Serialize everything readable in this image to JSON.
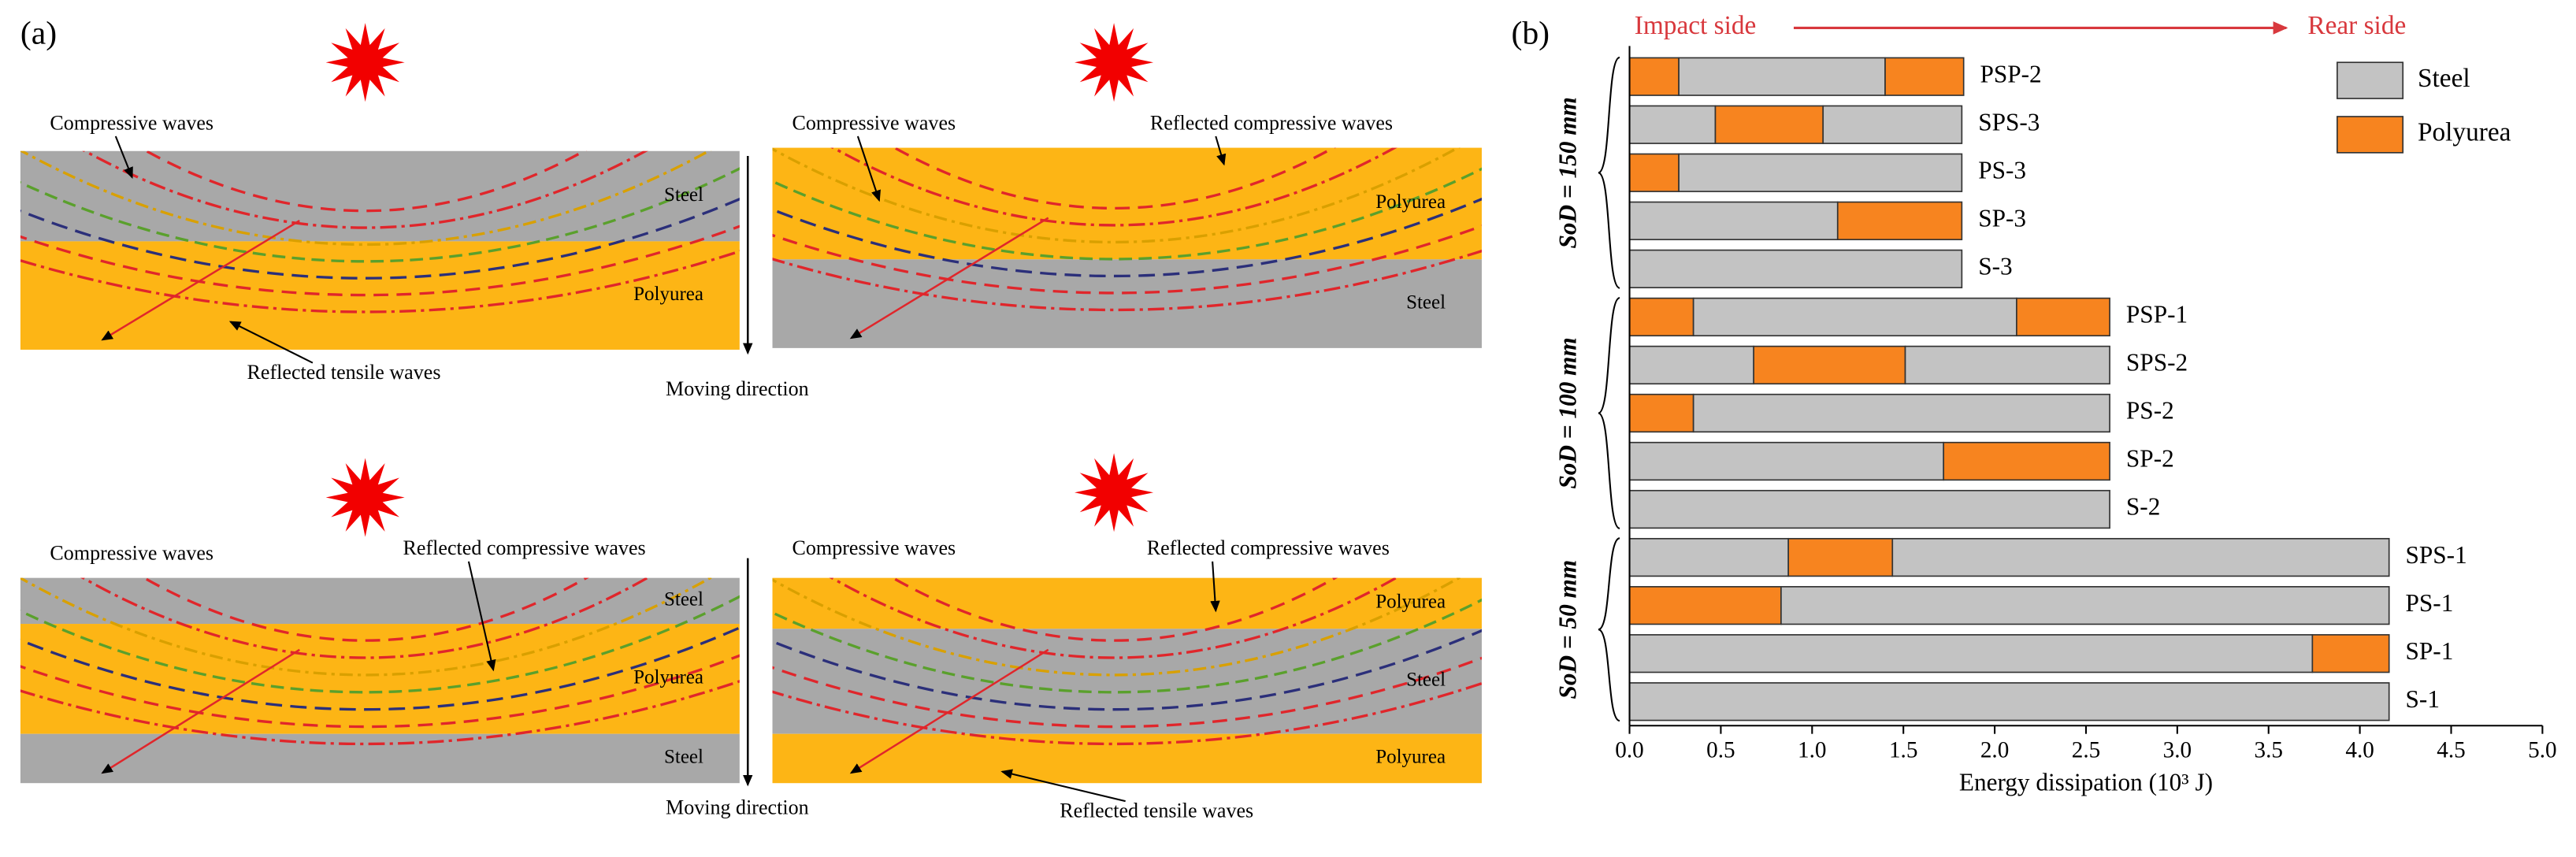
{
  "panel_a": {
    "label": "(a)",
    "diagrams": [
      {
        "layers": [
          "Steel",
          "Polyurea"
        ],
        "annotations": [
          "Compressive waves",
          "Reflected tensile waves"
        ]
      },
      {
        "layers": [
          "Polyurea",
          "Steel"
        ],
        "annotations": [
          "Compressive waves",
          "Reflected compressive waves"
        ]
      },
      {
        "layers": [
          "Steel",
          "Polyurea",
          "Steel"
        ],
        "annotations": [
          "Compressive waves",
          "Reflected compressive waves"
        ]
      },
      {
        "layers": [
          "Polyurea",
          "Steel",
          "Polyurea"
        ],
        "annotations": [
          "Compressive waves",
          "Reflected compressive waves",
          "Reflected tensile waves"
        ]
      }
    ],
    "arrows": [
      "Moving direction",
      "Moving direction"
    ]
  },
  "chart_data": {
    "type": "bar",
    "orientation": "horizontal",
    "stacked": true,
    "panel_label": "(b)",
    "annotation": {
      "left": "Impact side",
      "right": "Rear side"
    },
    "xlabel": "Energy dissipation (10³ J)",
    "xlim": [
      0,
      5
    ],
    "xticks": [
      {
        "value": 0,
        "label": "0.0"
      },
      0.5,
      {
        "value": 1,
        "label": "1.0"
      },
      1.5,
      {
        "value": 2,
        "label": "2.0"
      },
      2.5,
      {
        "value": 3,
        "label": "3.0"
      },
      3.5,
      {
        "value": 4,
        "label": "4.0"
      },
      4.5,
      {
        "value": 5,
        "label": "5.0"
      }
    ],
    "legend": "upper right",
    "series": [
      {
        "name": "Steel",
        "color": "#c3c3c3"
      },
      {
        "name": "Polyurea",
        "color": "#f7841f"
      }
    ],
    "groups": [
      {
        "label": "SoD = 150 mm",
        "bars": [
          {
            "label": "PSP-2",
            "segments": [
              {
                "series": 1,
                "value": 0.27
              },
              {
                "series": 0,
                "value": 1.13
              },
              {
                "series": 1,
                "value": 0.43
              }
            ]
          },
          {
            "label": "SPS-3",
            "segments": [
              {
                "series": 0,
                "value": 0.47
              },
              {
                "series": 1,
                "value": 0.59
              },
              {
                "series": 0,
                "value": 0.76
              }
            ]
          },
          {
            "label": "PS-3",
            "segments": [
              {
                "series": 1,
                "value": 0.27
              },
              {
                "series": 0,
                "value": 1.55
              }
            ]
          },
          {
            "label": "SP-3",
            "segments": [
              {
                "series": 0,
                "value": 1.14
              },
              {
                "series": 1,
                "value": 0.68
              }
            ]
          },
          {
            "label": "S-3",
            "segments": [
              {
                "series": 0,
                "value": 1.82
              }
            ]
          }
        ]
      },
      {
        "label": "SoD = 100 mm",
        "bars": [
          {
            "label": "PSP-1",
            "segments": [
              {
                "series": 1,
                "value": 0.35
              },
              {
                "series": 0,
                "value": 1.77
              },
              {
                "series": 1,
                "value": 0.51
              }
            ]
          },
          {
            "label": "SPS-2",
            "segments": [
              {
                "series": 0,
                "value": 0.68
              },
              {
                "series": 1,
                "value": 0.83
              },
              {
                "series": 0,
                "value": 1.12
              }
            ]
          },
          {
            "label": "PS-2",
            "segments": [
              {
                "series": 1,
                "value": 0.35
              },
              {
                "series": 0,
                "value": 2.28
              }
            ]
          },
          {
            "label": "SP-2",
            "segments": [
              {
                "series": 0,
                "value": 1.72
              },
              {
                "series": 1,
                "value": 0.91
              }
            ]
          },
          {
            "label": "S-2",
            "segments": [
              {
                "series": 0,
                "value": 2.63
              }
            ]
          }
        ]
      },
      {
        "label": "SoD = 50 mm",
        "bars": [
          {
            "label": "SPS-1",
            "segments": [
              {
                "series": 0,
                "value": 0.87
              },
              {
                "series": 1,
                "value": 0.57
              },
              {
                "series": 0,
                "value": 2.72
              }
            ]
          },
          {
            "label": "PS-1",
            "segments": [
              {
                "series": 1,
                "value": 0.83
              },
              {
                "series": 0,
                "value": 3.33
              }
            ]
          },
          {
            "label": "SP-1",
            "segments": [
              {
                "series": 0,
                "value": 3.74
              },
              {
                "series": 1,
                "value": 0.42
              }
            ]
          },
          {
            "label": "S-1",
            "segments": [
              {
                "series": 0,
                "value": 4.16
              }
            ]
          }
        ]
      }
    ]
  }
}
